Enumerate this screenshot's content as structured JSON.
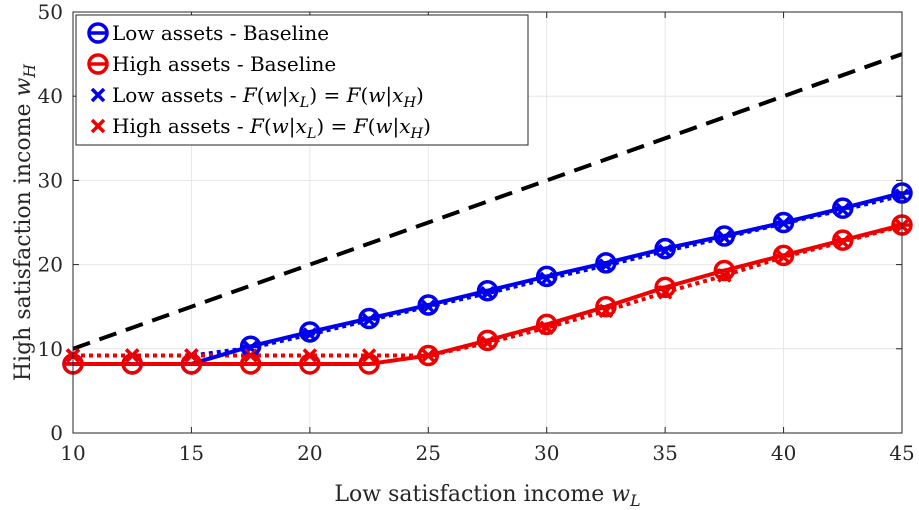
{
  "chart_data": {
    "type": "line",
    "xlabel": "Low satisfaction income w_L",
    "ylabel": "High satisfaction income w_H",
    "xlim": [
      10,
      45
    ],
    "ylim": [
      0,
      50
    ],
    "xticks": [
      10,
      15,
      20,
      25,
      30,
      35,
      40,
      45
    ],
    "yticks": [
      0,
      10,
      20,
      30,
      40,
      50
    ],
    "grid": true,
    "legend_position": "top-left",
    "reference_line": {
      "style": "dashed",
      "color": "#000000",
      "x": [
        10,
        45
      ],
      "y": [
        10,
        45
      ]
    },
    "series": [
      {
        "name": "Low assets - Baseline",
        "color": "#0000ee",
        "line": "solid",
        "marker": "circle-minus",
        "x": [
          10,
          12.5,
          15,
          17.5,
          20,
          22.5,
          25,
          27.5,
          30,
          32.5,
          35,
          37.5,
          40,
          42.5,
          45
        ],
        "y": [
          8.2,
          8.2,
          8.2,
          10.3,
          12.0,
          13.6,
          15.2,
          16.9,
          18.6,
          20.2,
          21.9,
          23.4,
          25.0,
          26.7,
          28.5
        ]
      },
      {
        "name": "High assets - Baseline",
        "color": "#ee0000",
        "line": "solid",
        "marker": "circle-minus",
        "x": [
          10,
          12.5,
          15,
          17.5,
          20,
          22.5,
          25,
          27.5,
          30,
          32.5,
          35,
          37.5,
          40,
          42.5,
          45
        ],
        "y": [
          8.2,
          8.2,
          8.2,
          8.2,
          8.2,
          8.2,
          9.2,
          11.0,
          12.9,
          15.0,
          17.3,
          19.3,
          21.1,
          22.9,
          24.7
        ]
      },
      {
        "name": "Low assets - F(w|x_L) = F(w|x_H)",
        "color": "#0000ee",
        "line": "dotted",
        "marker": "x",
        "x": [
          10,
          12.5,
          15,
          17.5,
          20,
          22.5,
          25,
          27.5,
          30,
          32.5,
          35,
          37.5,
          40,
          42.5,
          45
        ],
        "y": [
          9.2,
          9.2,
          9.2,
          10.1,
          11.7,
          13.4,
          15.0,
          16.6,
          18.3,
          19.9,
          21.6,
          23.2,
          24.9,
          26.5,
          28.2
        ]
      },
      {
        "name": "High assets - F(w|x_L) = F(w|x_H)",
        "color": "#ee0000",
        "line": "dotted",
        "marker": "x",
        "x": [
          10,
          12.5,
          15,
          17.5,
          20,
          22.5,
          25,
          27.5,
          30,
          32.5,
          35,
          37.5,
          40,
          42.5,
          45
        ],
        "y": [
          9.2,
          9.2,
          9.2,
          9.2,
          9.2,
          9.2,
          9.2,
          10.7,
          12.5,
          14.5,
          16.7,
          18.7,
          20.9,
          22.7,
          24.6
        ]
      }
    ]
  }
}
